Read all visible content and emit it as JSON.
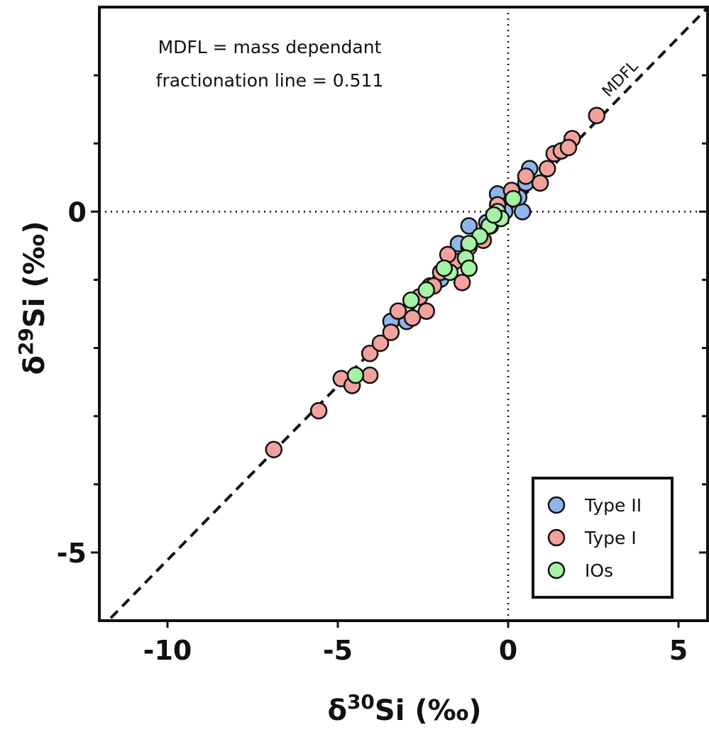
{
  "chart_data": {
    "type": "scatter",
    "x_label_parts": [
      "δ",
      "30",
      "Si (‰)"
    ],
    "y_label_parts": [
      "δ",
      "29",
      "Si (‰)"
    ],
    "annotations": [
      "MDFL = mass dependant",
      "fractionation line = 0.511"
    ],
    "fit_line": {
      "slope": 0.511,
      "label": "MDFL"
    },
    "reference_lines": {
      "x": 0,
      "y": 0
    },
    "xlim": [
      -12,
      6
    ],
    "ylim": [
      -6,
      3
    ],
    "xticks": [
      -10,
      -5,
      0,
      5
    ],
    "yticks": [
      -5,
      0
    ],
    "yticks_minor": [
      -4,
      -3,
      -2,
      -1,
      1,
      2
    ],
    "legend": "lower right",
    "series": [
      {
        "name": "Type II",
        "color": "#8fb6ea",
        "x": [
          0.63,
          0.52,
          -0.31,
          -0.1,
          0.42,
          -3.44,
          -2.98,
          -2.29,
          -1.46,
          -1.15,
          -0.63,
          -1.98,
          0.31
        ],
        "values": [
          0.63,
          0.42,
          0.26,
          0,
          0,
          -1.61,
          -1.61,
          -1.09,
          -0.47,
          -0.21,
          -0.16,
          -0.99,
          0.21
        ]
      },
      {
        "name": "Type I",
        "color": "#f2a19d",
        "x": [
          -6.88,
          -5.56,
          2.6,
          1.88,
          1.35,
          0.94,
          -4.9,
          -4.58,
          -4.06,
          -4.06,
          -3.75,
          -3.44,
          -2.6,
          -2.4,
          -1.98,
          -1.56,
          -1.15,
          -0.52,
          0.1,
          0.52,
          1.56,
          1.77,
          1.15,
          -1.35,
          -2.19,
          -2.81,
          -3.23,
          -0.73,
          -0.31,
          -1.77
        ],
        "values": [
          -3.49,
          -2.92,
          1.41,
          1.07,
          0.85,
          0.42,
          -2.45,
          -2.55,
          -2.4,
          -2.08,
          -1.93,
          -1.77,
          -1.25,
          -1.46,
          -0.89,
          -0.73,
          -0.52,
          -0.21,
          0.31,
          0.52,
          0.89,
          0.94,
          0.63,
          -1.04,
          -1.09,
          -1.56,
          -1.46,
          -0.42,
          0.1,
          -0.63
        ]
      },
      {
        "name": "IOs",
        "color": "#a6f2a4",
        "x": [
          0.15,
          -0.31,
          -0.56,
          -0.83,
          -1.15,
          -1.25,
          -1.15,
          -1.71,
          -1.88,
          -2.4,
          -2.85,
          -4.48,
          -0.21,
          -0.42
        ],
        "values": [
          0.19,
          0,
          -0.21,
          -0.36,
          -0.47,
          -0.68,
          -0.83,
          -0.89,
          -0.83,
          -1.15,
          -1.3,
          -2.4,
          -0.1,
          -0.05
        ]
      }
    ]
  }
}
